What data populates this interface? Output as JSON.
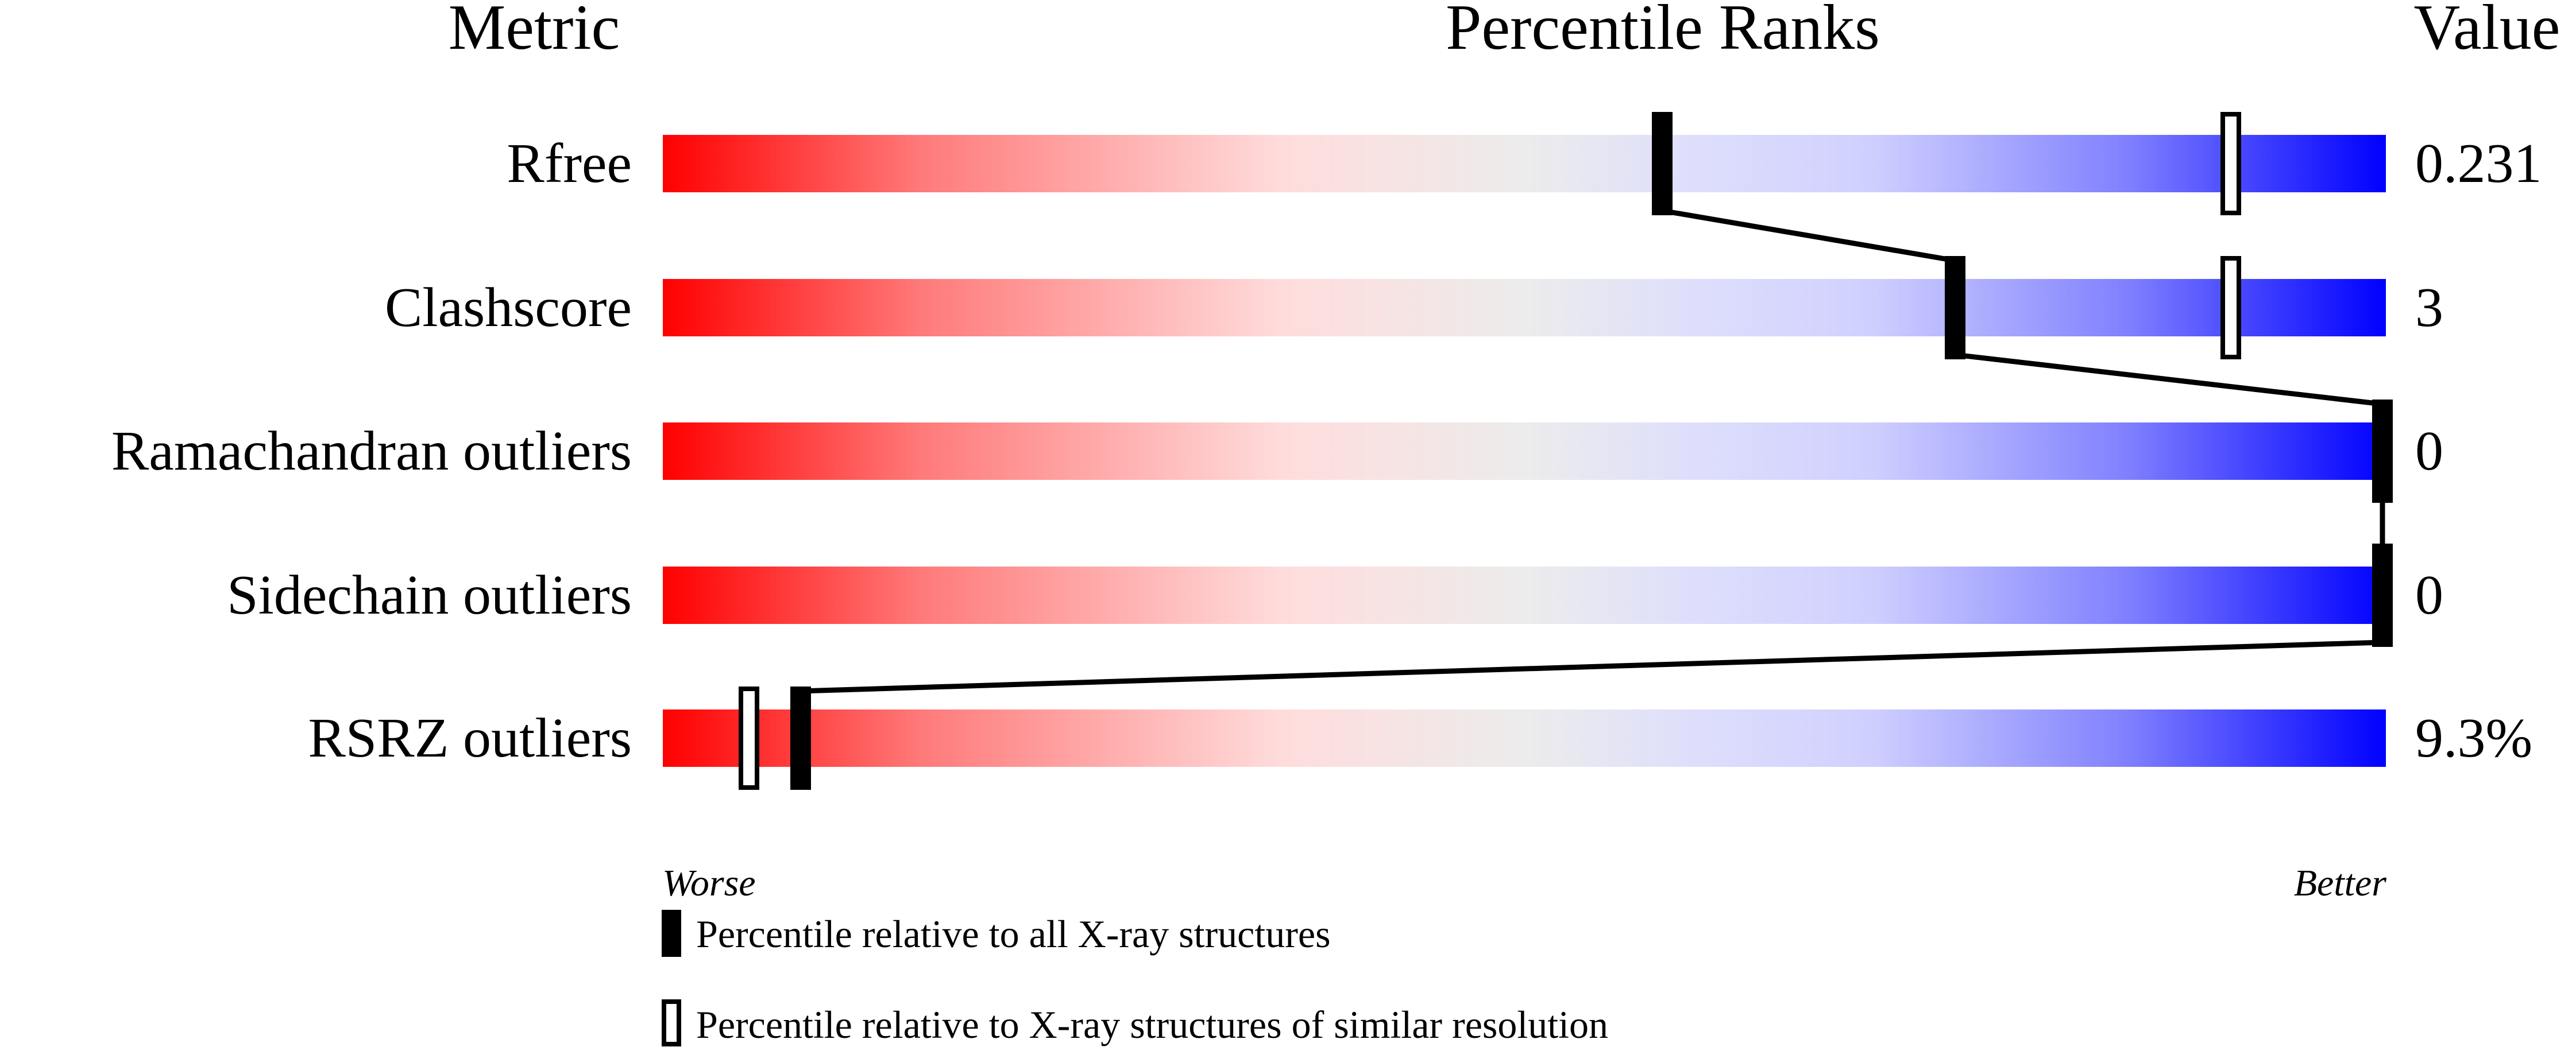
{
  "chart_data": {
    "type": "bar",
    "headers": {
      "metric": "Metric",
      "ranks": "Percentile Ranks",
      "value": "Value"
    },
    "xlim": [
      0,
      100
    ],
    "rows": [
      {
        "metric": "Rfree",
        "value": "0.231",
        "percentile_absolute": 58,
        "percentile_relative": 91
      },
      {
        "metric": "Clashscore",
        "value": "3",
        "percentile_absolute": 75,
        "percentile_relative": 91
      },
      {
        "metric": "Ramachandran outliers",
        "value": "0",
        "percentile_absolute": 100,
        "percentile_relative": null
      },
      {
        "metric": "Sidechain outliers",
        "value": "0",
        "percentile_absolute": 100,
        "percentile_relative": null
      },
      {
        "metric": "RSRZ outliers",
        "value": "9.3%",
        "percentile_absolute": 8,
        "percentile_relative": 5
      }
    ],
    "axis_labels": {
      "left": "Worse",
      "right": "Better"
    },
    "legend": {
      "absolute": "Percentile relative to all X-ray structures",
      "relative": "Percentile relative to X-ray structures of similar resolution"
    },
    "colors": {
      "worse": "#ff0000",
      "middle": "#eeeeee",
      "better": "#0000ff",
      "marker": "#000000"
    }
  }
}
